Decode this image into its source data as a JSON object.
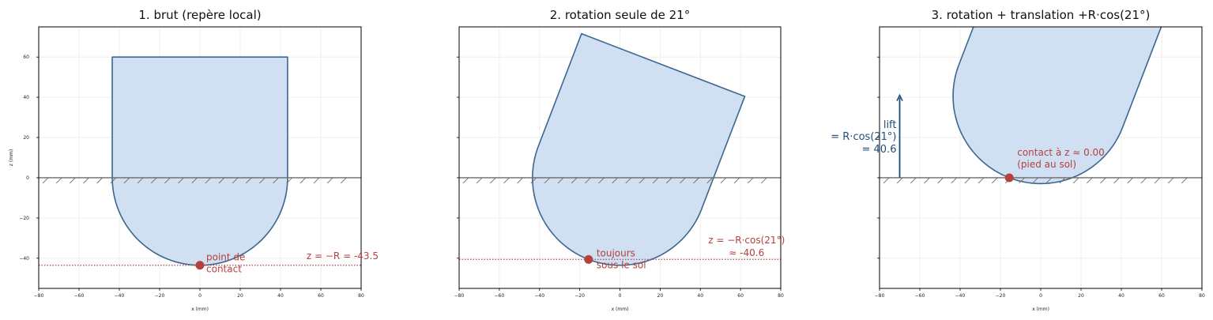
{
  "colors": {
    "body_fill": "#d0dff2",
    "body_stroke": "#3b6690",
    "contact_red": "#b5413e",
    "ground": "#6b6b6b",
    "grid": "#ebebeb",
    "lift_blue": "#1f4e79"
  },
  "chart_data": [
    {
      "type": "diagram",
      "title": "1. brut (repère local)",
      "xlabel": "x (mm)",
      "ylabel": "z (mm)",
      "xlim": [
        -80,
        80
      ],
      "ylim": [
        -55,
        75
      ],
      "xticks": [
        -80,
        -60,
        -40,
        -20,
        0,
        20,
        40,
        60,
        80
      ],
      "yticks": [
        -40,
        -20,
        0,
        20,
        40,
        60
      ],
      "tick_labels_x": [
        "−80",
        "−60",
        "−40",
        "−20",
        "0",
        "20",
        "40",
        "60",
        "80"
      ],
      "tick_labels_y": [
        "−40",
        "−20",
        "0",
        "20",
        "40",
        "60"
      ],
      "rotation_deg": 0,
      "lift": 0,
      "radius": 43.5,
      "top_z": 60,
      "contact_point": [
        0,
        -43.5
      ],
      "contact_line_z": -43.5,
      "contact_label": [
        "point de",
        "contact"
      ],
      "z_label": [
        "z = −R = -43.5"
      ],
      "grid": true
    },
    {
      "type": "diagram",
      "title": "2. rotation seule de 21°",
      "xlabel": "x (mm)",
      "xlim": [
        -80,
        80
      ],
      "ylim": [
        -55,
        75
      ],
      "xticks": [
        -80,
        -60,
        -40,
        -20,
        0,
        20,
        40,
        60,
        80
      ],
      "yticks": [
        -40,
        -20,
        0,
        20,
        40,
        60
      ],
      "tick_labels_x": [
        "−80",
        "−60",
        "−40",
        "−20",
        "0",
        "20",
        "40",
        "60",
        "80"
      ],
      "rotation_deg": 21,
      "lift": 0,
      "radius": 43.5,
      "top_z": 60,
      "contact_point": [
        -15.6,
        -40.6
      ],
      "contact_line_z": -40.6,
      "contact_label": [
        "toujours",
        "sous le sol"
      ],
      "z_label": [
        "z = −R·cos(21°)",
        "≈ -40.6"
      ],
      "grid": true
    },
    {
      "type": "diagram",
      "title": "3. rotation + translation +R·cos(21°)",
      "xlabel": "x (mm)",
      "xlim": [
        -80,
        80
      ],
      "ylim": [
        -55,
        75
      ],
      "xticks": [
        -80,
        -60,
        -40,
        -20,
        0,
        20,
        40,
        60,
        80
      ],
      "yticks": [
        -40,
        -20,
        0,
        20,
        40,
        60
      ],
      "tick_labels_x": [
        "−80",
        "−60",
        "−40",
        "−20",
        "0",
        "20",
        "40",
        "60",
        "80"
      ],
      "rotation_deg": 21,
      "lift": 40.6,
      "radius": 43.5,
      "top_z": 60,
      "contact_point": [
        -15.6,
        0
      ],
      "contact_label": [
        "contact à z ≈ 0.00",
        "(pied au sol)"
      ],
      "lift_label": [
        "lift",
        "= R·cos(21°)",
        "= 40.6"
      ],
      "grid": true
    }
  ]
}
